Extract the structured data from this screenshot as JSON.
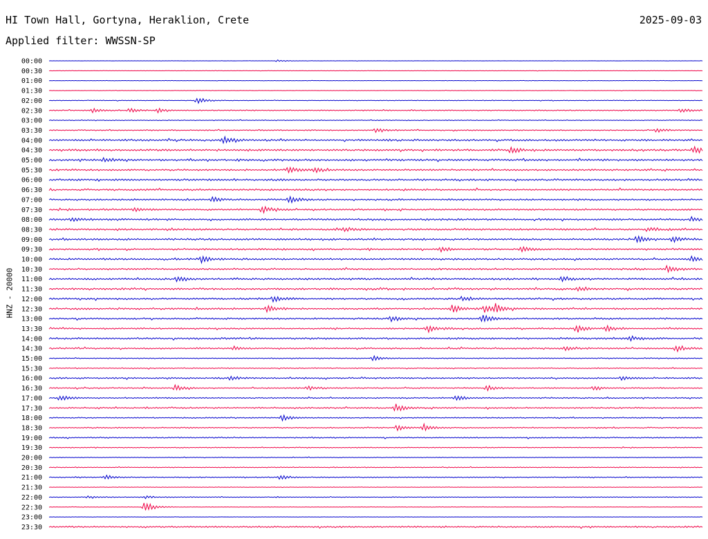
{
  "header": {
    "station": "HI Town Hall, Gortyna, Heraklion, Crete",
    "filter": "Applied filter: WWSSN-SP",
    "date": "2025-09-03"
  },
  "chart_data": {
    "type": "line",
    "subtype": "helicorder",
    "ylabel": "HNZ - 20000",
    "row_labels": [
      "00:00",
      "00:30",
      "01:00",
      "01:30",
      "02:00",
      "02:30",
      "03:00",
      "03:30",
      "04:00",
      "04:30",
      "05:00",
      "05:30",
      "06:00",
      "06:30",
      "07:00",
      "07:30",
      "08:00",
      "08:30",
      "09:00",
      "09:30",
      "10:00",
      "10:30",
      "11:00",
      "11:30",
      "12:00",
      "12:30",
      "13:00",
      "13:30",
      "14:00",
      "14:30",
      "15:00",
      "15:30",
      "16:00",
      "16:30",
      "17:00",
      "17:30",
      "18:00",
      "18:30",
      "19:00",
      "19:30",
      "20:00",
      "20:30",
      "21:00",
      "21:30",
      "22:00",
      "22:30",
      "23:00",
      "23:30"
    ],
    "minutes_per_row": 30,
    "colors": [
      "#0000cc",
      "#ee0044"
    ],
    "noise_level": [
      0.2,
      0.3,
      0.3,
      0.3,
      0.5,
      0.9,
      0.6,
      0.9,
      1.5,
      1.6,
      1.5,
      1.4,
      1.5,
      1.4,
      1.3,
      1.4,
      1.5,
      1.5,
      1.5,
      1.4,
      1.5,
      1.4,
      1.5,
      1.5,
      1.4,
      1.4,
      1.3,
      1.2,
      1.5,
      1.2,
      0.8,
      0.8,
      1.2,
      1.0,
      1.0,
      1.1,
      0.9,
      0.9,
      1.0,
      0.7,
      0.6,
      0.7,
      0.8,
      0.4,
      0.6,
      0.4,
      0.3,
      1.2
    ],
    "bursts": [
      {
        "row": 0,
        "minute": 10.5,
        "amp": 1.5
      },
      {
        "row": 4,
        "minute": 6.8,
        "amp": 5
      },
      {
        "row": 5,
        "minute": 2.0,
        "amp": 3
      },
      {
        "row": 5,
        "minute": 3.7,
        "amp": 3
      },
      {
        "row": 5,
        "minute": 5.0,
        "amp": 3
      },
      {
        "row": 5,
        "minute": 29.0,
        "amp": 3
      },
      {
        "row": 7,
        "minute": 15.0,
        "amp": 3
      },
      {
        "row": 7,
        "minute": 27.9,
        "amp": 3
      },
      {
        "row": 8,
        "minute": 8.0,
        "amp": 5
      },
      {
        "row": 9,
        "minute": 21.2,
        "amp": 5
      },
      {
        "row": 9,
        "minute": 29.6,
        "amp": 4
      },
      {
        "row": 10,
        "minute": 2.5,
        "amp": 3
      },
      {
        "row": 11,
        "minute": 11.0,
        "amp": 4
      },
      {
        "row": 11,
        "minute": 12.2,
        "amp": 3
      },
      {
        "row": 14,
        "minute": 7.5,
        "amp": 4
      },
      {
        "row": 14,
        "minute": 11.0,
        "amp": 5
      },
      {
        "row": 15,
        "minute": 9.8,
        "amp": 5
      },
      {
        "row": 15,
        "minute": 3.9,
        "amp": 3
      },
      {
        "row": 16,
        "minute": 1.0,
        "amp": 3
      },
      {
        "row": 16,
        "minute": 29.5,
        "amp": 3
      },
      {
        "row": 17,
        "minute": 13.5,
        "amp": 3
      },
      {
        "row": 17,
        "minute": 27.5,
        "amp": 3
      },
      {
        "row": 18,
        "minute": 27.0,
        "amp": 5
      },
      {
        "row": 18,
        "minute": 28.6,
        "amp": 4
      },
      {
        "row": 19,
        "minute": 18.0,
        "amp": 4
      },
      {
        "row": 19,
        "minute": 21.7,
        "amp": 4
      },
      {
        "row": 20,
        "minute": 7.0,
        "amp": 5
      },
      {
        "row": 20,
        "minute": 29.5,
        "amp": 4
      },
      {
        "row": 21,
        "minute": 28.4,
        "amp": 6
      },
      {
        "row": 22,
        "minute": 5.9,
        "amp": 4
      },
      {
        "row": 22,
        "minute": 23.5,
        "amp": 4
      },
      {
        "row": 23,
        "minute": 24.3,
        "amp": 4
      },
      {
        "row": 24,
        "minute": 10.3,
        "amp": 4
      },
      {
        "row": 24,
        "minute": 19.0,
        "amp": 4
      },
      {
        "row": 25,
        "minute": 10.0,
        "amp": 5
      },
      {
        "row": 25,
        "minute": 18.5,
        "amp": 6
      },
      {
        "row": 25,
        "minute": 20.0,
        "amp": 6
      },
      {
        "row": 25,
        "minute": 20.5,
        "amp": 6
      },
      {
        "row": 26,
        "minute": 15.7,
        "amp": 4
      },
      {
        "row": 26,
        "minute": 19.9,
        "amp": 6
      },
      {
        "row": 27,
        "minute": 17.4,
        "amp": 5
      },
      {
        "row": 27,
        "minute": 24.2,
        "amp": 6
      },
      {
        "row": 27,
        "minute": 25.6,
        "amp": 4
      },
      {
        "row": 28,
        "minute": 26.7,
        "amp": 3
      },
      {
        "row": 29,
        "minute": 8.5,
        "amp": 3
      },
      {
        "row": 29,
        "minute": 23.7,
        "amp": 4
      },
      {
        "row": 29,
        "minute": 28.8,
        "amp": 5
      },
      {
        "row": 30,
        "minute": 14.9,
        "amp": 4
      },
      {
        "row": 32,
        "minute": 8.3,
        "amp": 3
      },
      {
        "row": 32,
        "minute": 26.3,
        "amp": 3
      },
      {
        "row": 33,
        "minute": 5.8,
        "amp": 4
      },
      {
        "row": 33,
        "minute": 11.9,
        "amp": 3
      },
      {
        "row": 33,
        "minute": 20.1,
        "amp": 4
      },
      {
        "row": 33,
        "minute": 25.0,
        "amp": 3
      },
      {
        "row": 34,
        "minute": 0.5,
        "amp": 4
      },
      {
        "row": 34,
        "minute": 18.7,
        "amp": 4
      },
      {
        "row": 35,
        "minute": 15.9,
        "amp": 6
      },
      {
        "row": 36,
        "minute": 10.7,
        "amp": 5
      },
      {
        "row": 37,
        "minute": 16.0,
        "amp": 4
      },
      {
        "row": 37,
        "minute": 17.2,
        "amp": 5
      },
      {
        "row": 42,
        "minute": 2.6,
        "amp": 3
      },
      {
        "row": 42,
        "minute": 10.6,
        "amp": 4
      },
      {
        "row": 44,
        "minute": 1.8,
        "amp": 2
      },
      {
        "row": 44,
        "minute": 4.4,
        "amp": 2
      },
      {
        "row": 45,
        "minute": 4.4,
        "amp": 8
      }
    ]
  }
}
